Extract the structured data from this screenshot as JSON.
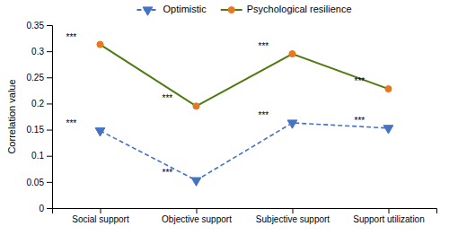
{
  "chart_data": {
    "type": "line",
    "categories": [
      "Social support",
      "Objective support",
      "Subjective support",
      "Support utilization"
    ],
    "series": [
      {
        "name": "Optimistic",
        "color": "#4472C4",
        "marker": "triangle-down",
        "line_style": "dashed",
        "values": [
          0.148,
          0.053,
          0.163,
          0.153
        ],
        "annotations": [
          "***",
          "***",
          "***",
          "***"
        ]
      },
      {
        "name": "Psychological resilience",
        "color": "#4E7A10",
        "colors": [
          "#E87722",
          "#E87722",
          "#E87722",
          "#E87722"
        ],
        "marker": "circle",
        "line_style": "solid",
        "values": [
          0.313,
          0.195,
          0.295,
          0.228
        ],
        "annotations": [
          "***",
          "***",
          "***",
          "***"
        ]
      }
    ],
    "ylabel": "Correlation value",
    "ylim": [
      0,
      0.35
    ],
    "yticks": [
      0,
      0.05,
      0.1,
      0.15,
      0.2,
      0.25,
      0.3,
      0.35
    ],
    "grid": false,
    "legend": "top"
  }
}
